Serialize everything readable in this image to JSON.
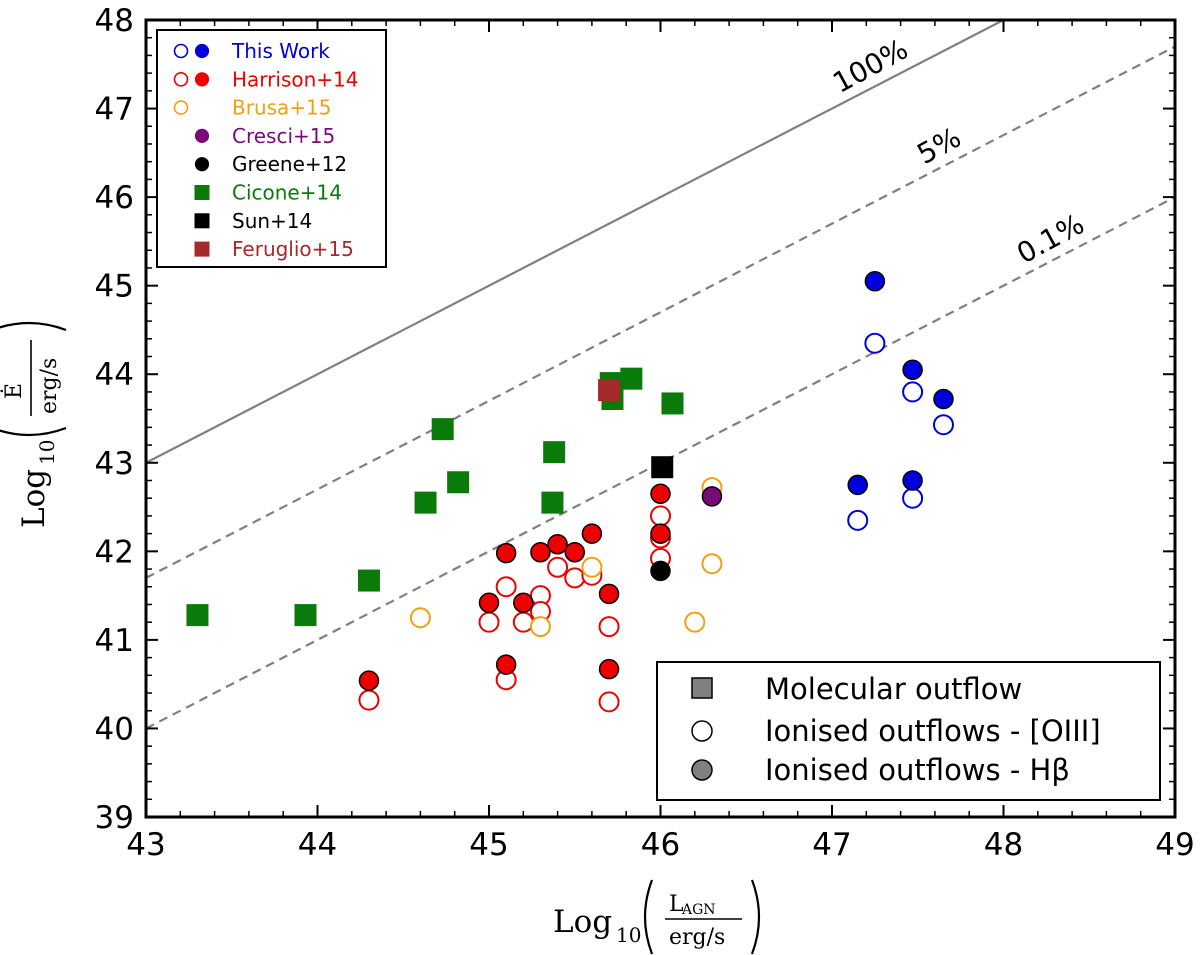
{
  "chart_data": {
    "type": "scatter",
    "xlabel": {
      "prefix": "Log",
      "sub": "10",
      "numerator": "L",
      "numerator_sub": "AGN",
      "denominator": "erg/s"
    },
    "ylabel": {
      "prefix": "Log",
      "sub": "10",
      "numerator": "Ė",
      "denominator": "erg/s"
    },
    "xlim": [
      43,
      49
    ],
    "ylim": [
      39,
      48
    ],
    "xticks": [
      "43",
      "44",
      "45",
      "46",
      "47",
      "48",
      "49"
    ],
    "yticks": [
      "39",
      "40",
      "41",
      "42",
      "43",
      "44",
      "45",
      "46",
      "47",
      "48"
    ],
    "reference_lines": [
      {
        "label": "100%",
        "style": "solid",
        "offset": 0
      },
      {
        "label": "5%",
        "style": "dashed",
        "offset": -1.3
      },
      {
        "label": "0.1%",
        "style": "dashed",
        "offset": -3
      }
    ],
    "series": [
      {
        "name": "This Work",
        "color": "#0000dd",
        "marker": "circle",
        "open": [
          [
            47.15,
            42.35
          ],
          [
            47.25,
            44.35
          ],
          [
            47.47,
            43.8
          ],
          [
            47.47,
            42.6
          ],
          [
            47.65,
            43.43
          ]
        ],
        "filled": [
          [
            47.15,
            42.75
          ],
          [
            47.25,
            45.05
          ],
          [
            47.47,
            44.05
          ],
          [
            47.47,
            42.8
          ],
          [
            47.65,
            43.72
          ]
        ]
      },
      {
        "name": "Harrison+14",
        "color": "#ee0000",
        "marker": "circle",
        "open": [
          [
            44.3,
            40.32
          ],
          [
            45.0,
            41.2
          ],
          [
            45.1,
            41.6
          ],
          [
            45.1,
            40.55
          ],
          [
            45.2,
            41.2
          ],
          [
            45.3,
            41.5
          ],
          [
            45.3,
            41.32
          ],
          [
            45.4,
            41.82
          ],
          [
            45.5,
            41.7
          ],
          [
            45.6,
            41.73
          ],
          [
            45.7,
            41.15
          ],
          [
            45.7,
            40.3
          ],
          [
            46.0,
            42.4
          ],
          [
            46.0,
            42.15
          ],
          [
            46.0,
            41.92
          ]
        ],
        "filled": [
          [
            44.3,
            40.54
          ],
          [
            45.0,
            41.42
          ],
          [
            45.1,
            41.98
          ],
          [
            45.1,
            40.72
          ],
          [
            45.2,
            41.42
          ],
          [
            45.3,
            41.99
          ],
          [
            45.4,
            42.08
          ],
          [
            45.5,
            41.99
          ],
          [
            45.6,
            42.2
          ],
          [
            45.7,
            41.52
          ],
          [
            45.7,
            40.67
          ],
          [
            46.0,
            42.65
          ],
          [
            46.0,
            42.2
          ]
        ]
      },
      {
        "name": "Brusa+15",
        "color": "#f0a010",
        "marker": "circle",
        "open": [
          [
            44.6,
            41.25
          ],
          [
            45.3,
            41.15
          ],
          [
            45.6,
            41.82
          ],
          [
            46.2,
            41.2
          ],
          [
            46.3,
            42.72
          ],
          [
            46.3,
            41.86
          ]
        ],
        "filled": []
      },
      {
        "name": "Cresci+15",
        "color": "#7a0a7a",
        "marker": "circle",
        "open": [],
        "filled": [
          [
            46.3,
            42.62
          ]
        ]
      },
      {
        "name": "Greene+12",
        "color": "#000000",
        "marker": "circle",
        "open": [],
        "filled": [
          [
            46.0,
            41.78
          ]
        ]
      },
      {
        "name": "Cicone+14",
        "color": "#0a7a0a",
        "marker": "square",
        "open": [],
        "filled": [
          [
            43.3,
            41.28
          ],
          [
            43.93,
            41.28
          ],
          [
            44.3,
            41.67
          ],
          [
            44.63,
            42.55
          ],
          [
            44.73,
            43.38
          ],
          [
            44.82,
            42.78
          ],
          [
            45.37,
            42.55
          ],
          [
            45.38,
            43.12
          ],
          [
            45.71,
            43.9
          ],
          [
            45.72,
            43.72
          ],
          [
            45.83,
            43.95
          ],
          [
            46.07,
            43.67
          ]
        ]
      },
      {
        "name": "Sun+14",
        "color": "#000000",
        "marker": "square",
        "open": [],
        "filled": [
          [
            46.01,
            42.95
          ]
        ]
      },
      {
        "name": "Feruglio+15",
        "color": "#a52a2a",
        "marker": "square",
        "open": [],
        "filled": [
          [
            45.7,
            43.82
          ]
        ]
      }
    ],
    "marker_legend": [
      {
        "label": "Molecular outflow",
        "marker": "square"
      },
      {
        "label": "Ionised outflows - [OIII]",
        "marker": "open-circle"
      },
      {
        "label": "Ionised outflows - Hβ",
        "marker": "filled-circle"
      }
    ]
  }
}
